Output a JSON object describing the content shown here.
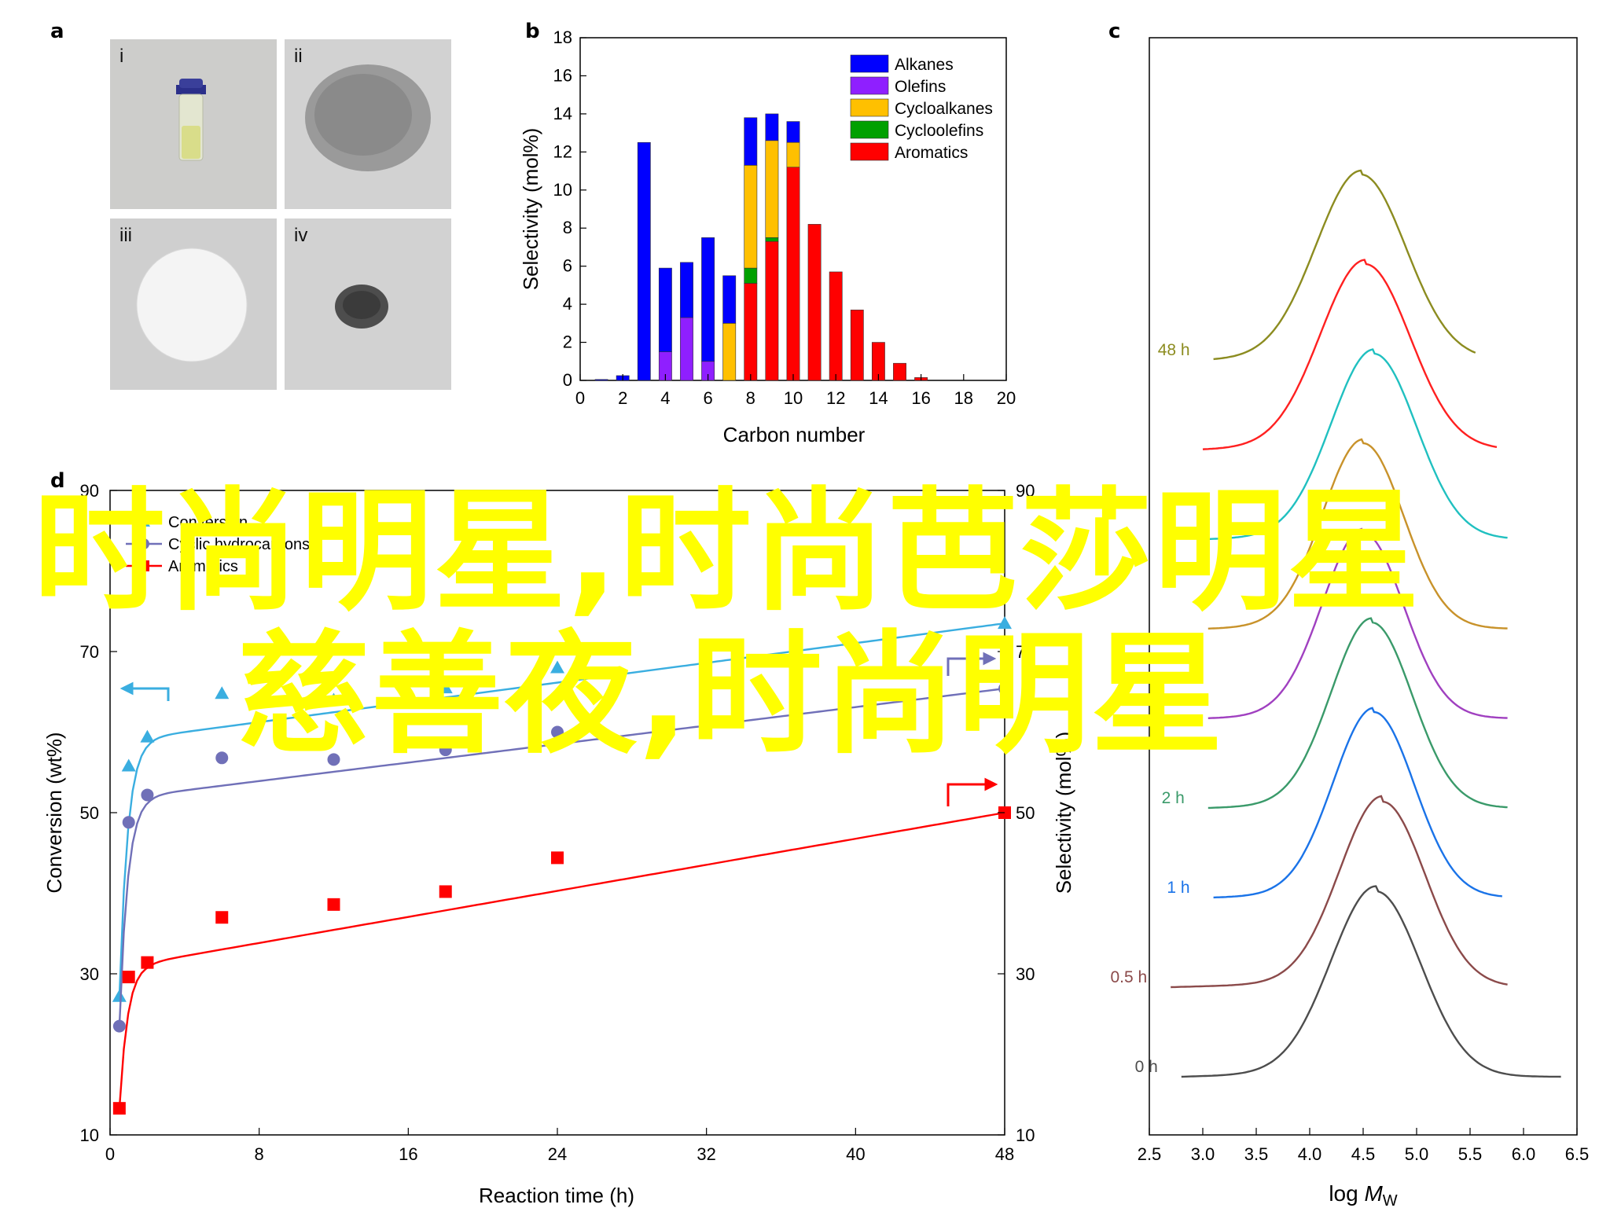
{
  "figure": {
    "panel_labels": {
      "a": "a",
      "b": "b",
      "c": "c",
      "d": "d"
    },
    "photos": [
      {
        "label": "i",
        "content": "glass vial with liquid"
      },
      {
        "label": "ii",
        "content": "grey powder"
      },
      {
        "label": "iii",
        "content": "white pellet"
      },
      {
        "label": "iv",
        "content": "dark powder"
      }
    ],
    "colors": {
      "alkanes": "#0000ff",
      "olefins": "#8f1fff",
      "cycloalkanes": "#ffc000",
      "cycloolefins": "#00a000",
      "aromatics": "#ff0000",
      "conversion": "#3aaee0",
      "cyclic": "#7070b8",
      "aromatics_line": "#ff0000"
    }
  },
  "chart_data": [
    {
      "panel": "b",
      "type": "bar",
      "xlabel": "Carbon number",
      "ylabel": "Selectivity (mol%)",
      "xlim": [
        0,
        20
      ],
      "ylim": [
        0,
        18
      ],
      "xticks": [
        0,
        2,
        4,
        6,
        8,
        10,
        12,
        14,
        16,
        18,
        20
      ],
      "yticks": [
        0,
        2,
        4,
        6,
        8,
        10,
        12,
        14,
        16,
        18
      ],
      "legend_position": "top-right",
      "categories": [
        1,
        2,
        3,
        4,
        5,
        6,
        7,
        8,
        9,
        10,
        11,
        12,
        13,
        14,
        15,
        16
      ],
      "stacked": true,
      "series": [
        {
          "name": "Aromatics",
          "values": [
            0,
            0,
            0,
            0,
            0,
            0,
            0,
            5.1,
            7.3,
            11.2,
            8.2,
            5.7,
            3.7,
            2.0,
            0.9,
            0.15
          ]
        },
        {
          "name": "Cycloolefins",
          "values": [
            0,
            0,
            0,
            0,
            0,
            0,
            0,
            0.8,
            0.2,
            0,
            0,
            0,
            0,
            0,
            0,
            0
          ]
        },
        {
          "name": "Cycloalkanes",
          "values": [
            0,
            0,
            0,
            0,
            0,
            0,
            3.0,
            5.4,
            5.1,
            1.3,
            0,
            0,
            0,
            0,
            0,
            0
          ]
        },
        {
          "name": "Olefins",
          "values": [
            0,
            0,
            0,
            1.5,
            3.3,
            1.0,
            0,
            0,
            0,
            0,
            0,
            0,
            0,
            0,
            0,
            0
          ]
        },
        {
          "name": "Alkanes",
          "values": [
            0.05,
            0.25,
            12.5,
            4.4,
            2.9,
            6.5,
            2.5,
            2.5,
            1.4,
            1.1,
            0,
            0,
            0,
            0,
            0,
            0
          ]
        }
      ],
      "legend_order": [
        "Alkanes",
        "Olefins",
        "Cycloalkanes",
        "Cycloolefins",
        "Aromatics"
      ]
    },
    {
      "panel": "c",
      "type": "line",
      "xlabel": "log M_W",
      "xlabel_main": "log ",
      "xlabel_italic": "M",
      "xlabel_sub": "W",
      "xlim": [
        2.5,
        6.5
      ],
      "xticks": [
        2.5,
        3.0,
        3.5,
        4.0,
        4.5,
        5.0,
        5.5,
        6.0,
        6.5
      ],
      "series": [
        {
          "name": "0 h",
          "color": "#4d4d4d",
          "x_start": 2.8,
          "x_end": 6.35,
          "peak": 4.62,
          "width": 0.42,
          "offset": 0
        },
        {
          "name": "0.5 h",
          "color": "#8b4a4a",
          "x_start": 2.7,
          "x_end": 5.85,
          "peak": 4.68,
          "width": 0.4,
          "offset": 1
        },
        {
          "name": "1 h",
          "color": "#1a73e8",
          "x_start": 3.1,
          "x_end": 5.8,
          "peak": 4.6,
          "width": 0.38,
          "offset": 2
        },
        {
          "name": "2 h",
          "color": "#3a9a6a",
          "x_start": 3.05,
          "x_end": 5.85,
          "peak": 4.58,
          "width": 0.38,
          "offset": 3
        },
        {
          "name": "",
          "color": "#a040c0",
          "x_start": 3.05,
          "x_end": 5.85,
          "peak": 4.5,
          "width": 0.38,
          "offset": 4
        },
        {
          "name": "",
          "color": "#c8922a",
          "x_start": 3.05,
          "x_end": 5.85,
          "peak": 4.5,
          "width": 0.38,
          "offset": 5
        },
        {
          "name": "",
          "color": "#20c0c0",
          "x_start": 3.05,
          "x_end": 5.85,
          "peak": 4.6,
          "width": 0.4,
          "offset": 6
        },
        {
          "name": "",
          "color": "#ff2020",
          "x_start": 3.0,
          "x_end": 5.75,
          "peak": 4.52,
          "width": 0.42,
          "offset": 7
        },
        {
          "name": "48 h",
          "color": "#8c8c20",
          "x_start": 3.1,
          "x_end": 5.55,
          "peak": 4.48,
          "width": 0.42,
          "offset": 8
        }
      ]
    },
    {
      "panel": "d",
      "type": "scatter",
      "xlabel": "Reaction time (h)",
      "ylabel_left": "Conversion (wt%)",
      "ylabel_right": "Selectivity (mol%)",
      "xlim": [
        0,
        48
      ],
      "ylim": [
        10,
        90
      ],
      "xticks": [
        0,
        8,
        16,
        24,
        32,
        40,
        48
      ],
      "yticks": [
        10,
        30,
        50,
        70,
        90
      ],
      "legend_position": "top-left",
      "series": [
        {
          "name": "Conversion",
          "marker": "triangle",
          "color": "#3aaee0",
          "x": [
            0.5,
            1,
            2,
            6,
            12,
            18,
            24,
            48
          ],
          "y": [
            27.2,
            55.8,
            59.4,
            64.8,
            64.0,
            65.5,
            68.0,
            73.5
          ]
        },
        {
          "name": "Cyclic hydrocarbons",
          "marker": "circle",
          "color": "#7070b8",
          "x": [
            0.5,
            1,
            2,
            6,
            12,
            18,
            24,
            48
          ],
          "y": [
            23.5,
            48.8,
            52.2,
            56.8,
            56.6,
            57.8,
            60.0,
            65.4
          ]
        },
        {
          "name": "Aromatics",
          "marker": "square",
          "color": "#ff0000",
          "x": [
            0.5,
            1,
            2,
            6,
            12,
            18,
            24,
            48
          ],
          "y": [
            13.3,
            29.6,
            31.4,
            37.0,
            38.6,
            40.2,
            44.4,
            50.0
          ]
        }
      ],
      "legend_label_texts": [
        "Conversion",
        "Cyclic hydrocarbons",
        "Aromatics"
      ]
    }
  ],
  "watermark": {
    "line1": "时尚明星,时尚芭莎明星",
    "line2": "慈善夜,时尚明星",
    "color": "#ffff00"
  }
}
